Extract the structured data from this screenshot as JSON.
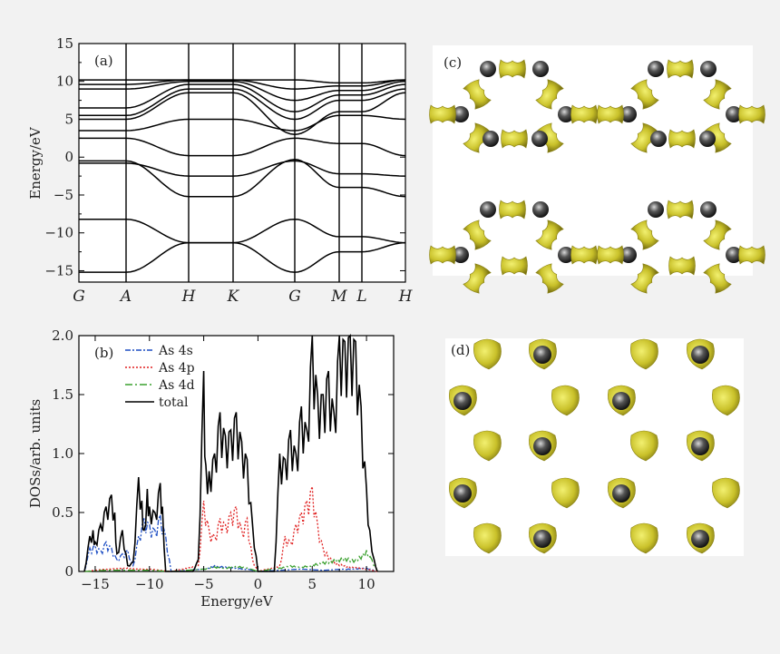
{
  "chart_data": [
    {
      "panel": "(a)",
      "type": "line",
      "ylabel": "Energy/eV",
      "ylim": [
        -16.5,
        15
      ],
      "yticks": [
        15,
        10,
        5,
        0,
        -5,
        -10,
        -15
      ],
      "kpath_labels": [
        "G",
        "A",
        "H",
        "K",
        "G",
        "M",
        "L",
        "H"
      ],
      "bands": [
        {
          "values": [
            -15.2,
            -15.2,
            -11.3,
            -11.3,
            -15.2,
            -12.5,
            -12.5,
            -11.3
          ]
        },
        {
          "values": [
            -8.2,
            -8.2,
            -11.3,
            -11.3,
            -8.2,
            -10.5,
            -10.5,
            -11.3
          ]
        },
        {
          "values": [
            -0.5,
            -0.5,
            -5.2,
            -5.2,
            -0.3,
            -4.0,
            -4.0,
            -5.2
          ]
        },
        {
          "values": [
            -0.8,
            -0.8,
            -2.5,
            -2.5,
            -0.5,
            -2.2,
            -2.2,
            -2.5
          ]
        },
        {
          "values": [
            2.5,
            2.5,
            0.2,
            0.2,
            2.5,
            1.8,
            1.8,
            0.2
          ]
        },
        {
          "values": [
            3.5,
            3.5,
            5.0,
            5.0,
            3.5,
            5.5,
            5.5,
            5.0
          ]
        },
        {
          "values": [
            5.0,
            5.0,
            8.5,
            8.5,
            3.0,
            6.0,
            6.0,
            8.5
          ]
        },
        {
          "values": [
            5.5,
            5.5,
            9.0,
            9.0,
            5.0,
            7.5,
            7.5,
            9.0
          ]
        },
        {
          "values": [
            6.5,
            6.5,
            9.6,
            9.6,
            6.0,
            8.2,
            8.2,
            9.6
          ]
        },
        {
          "values": [
            9.0,
            9.0,
            10.0,
            10.0,
            7.5,
            8.8,
            8.8,
            10.0
          ]
        },
        {
          "values": [
            9.6,
            9.6,
            10.2,
            10.2,
            9.0,
            9.4,
            9.4,
            10.2
          ]
        },
        {
          "values": [
            10.2,
            10.2,
            10.2,
            10.2,
            10.2,
            9.8,
            9.8,
            10.2
          ]
        }
      ]
    },
    {
      "panel": "(b)",
      "type": "line",
      "xlabel": "Energy/eV",
      "ylabel": "DOSs/arb. units",
      "xlim": [
        -16.5,
        12.5
      ],
      "ylim": [
        0,
        2.0
      ],
      "xticks": [
        -15,
        -10,
        -5,
        0,
        5,
        10
      ],
      "yticks": [
        0,
        0.5,
        1.0,
        1.5,
        2.0
      ],
      "legend_position": "top-left",
      "series": [
        {
          "name": "As 4s",
          "color": "#1f4fc4",
          "dash": "6,2,2,2",
          "x": [
            -16,
            -15.5,
            -15,
            -14.5,
            -14,
            -13.5,
            -13,
            -12.5,
            -12,
            -11.5,
            -11,
            -10.5,
            -10,
            -9.5,
            -9,
            -8.5,
            -8,
            -5,
            -4,
            -3,
            -2,
            -1,
            0,
            2,
            4,
            6,
            8,
            10,
            11
          ],
          "y": [
            0,
            0.2,
            0.22,
            0.18,
            0.25,
            0.2,
            0.1,
            0.15,
            0.18,
            0.05,
            0.3,
            0.45,
            0.4,
            0.35,
            0.48,
            0.3,
            0,
            0.02,
            0.05,
            0.04,
            0.03,
            0.02,
            0,
            0.01,
            0.02,
            0.01,
            0.02,
            0.03,
            0
          ]
        },
        {
          "name": "As 4p",
          "color": "#e02020",
          "dash": "2,2",
          "x": [
            -16,
            -14,
            -12,
            -10,
            -8,
            -5.5,
            -5,
            -4.5,
            -4,
            -3.5,
            -3,
            -2.5,
            -2,
            -1.5,
            -1,
            -0.5,
            0,
            2,
            2.5,
            3,
            3.5,
            4,
            4.5,
            5,
            5.5,
            6,
            7,
            8,
            10,
            11
          ],
          "y": [
            0,
            0.02,
            0.03,
            0.02,
            0,
            0.05,
            0.6,
            0.35,
            0.3,
            0.45,
            0.4,
            0.5,
            0.55,
            0.35,
            0.45,
            0.1,
            0,
            0.05,
            0.3,
            0.25,
            0.4,
            0.5,
            0.6,
            0.72,
            0.4,
            0.2,
            0.08,
            0.05,
            0.02,
            0
          ]
        },
        {
          "name": "As 4d",
          "color": "#3aa02e",
          "dash": "8,3,2,3",
          "x": [
            -16,
            -14,
            -12,
            -10,
            -8,
            -5,
            -4,
            -3,
            -2,
            -1,
            0,
            2,
            3,
            4,
            5,
            6,
            7,
            8,
            9,
            10,
            10.5,
            11
          ],
          "y": [
            0,
            0.01,
            0.01,
            0.01,
            0,
            0.02,
            0.04,
            0.03,
            0.05,
            0.03,
            0,
            0.03,
            0.05,
            0.04,
            0.06,
            0.08,
            0.1,
            0.12,
            0.1,
            0.18,
            0.1,
            0
          ]
        },
        {
          "name": "total",
          "color": "#000000",
          "dash": "",
          "x": [
            -16,
            -15.5,
            -15.2,
            -15,
            -14.5,
            -14,
            -13.5,
            -13.2,
            -13,
            -12.5,
            -12,
            -11.5,
            -11,
            -10.7,
            -10.5,
            -10.2,
            -10,
            -9.5,
            -9,
            -8.8,
            -8.5,
            -6,
            -5.5,
            -5,
            -4.8,
            -4.5,
            -4,
            -3.5,
            -3,
            -2.5,
            -2,
            -1.5,
            -1,
            -0.5,
            0,
            1.5,
            2,
            2.5,
            3,
            3.5,
            4,
            4.5,
            5,
            5.5,
            6,
            6.5,
            7,
            7.5,
            8,
            8.5,
            9,
            9.5,
            10,
            10.3,
            10.7,
            11
          ],
          "y": [
            0,
            0.3,
            0.35,
            0.25,
            0.4,
            0.55,
            0.65,
            0.5,
            0.15,
            0.35,
            0.05,
            0.08,
            0.8,
            0.6,
            0.35,
            0.7,
            0.55,
            0.5,
            0.75,
            0.55,
            0,
            0,
            0.1,
            1.7,
            0.9,
            0.85,
            1.0,
            1.35,
            1.15,
            1.2,
            1.35,
            1.1,
            0.95,
            0.4,
            0,
            0,
            1.0,
            0.95,
            1.2,
            1.0,
            1.4,
            1.2,
            2.0,
            1.5,
            1.5,
            1.7,
            1.35,
            2.0,
            1.95,
            2.0,
            1.95,
            1.4,
            0.7,
            0.35,
            0.1,
            0
          ]
        }
      ]
    }
  ],
  "images": [
    {
      "panel": "(c)"
    },
    {
      "panel": "(d)"
    }
  ]
}
